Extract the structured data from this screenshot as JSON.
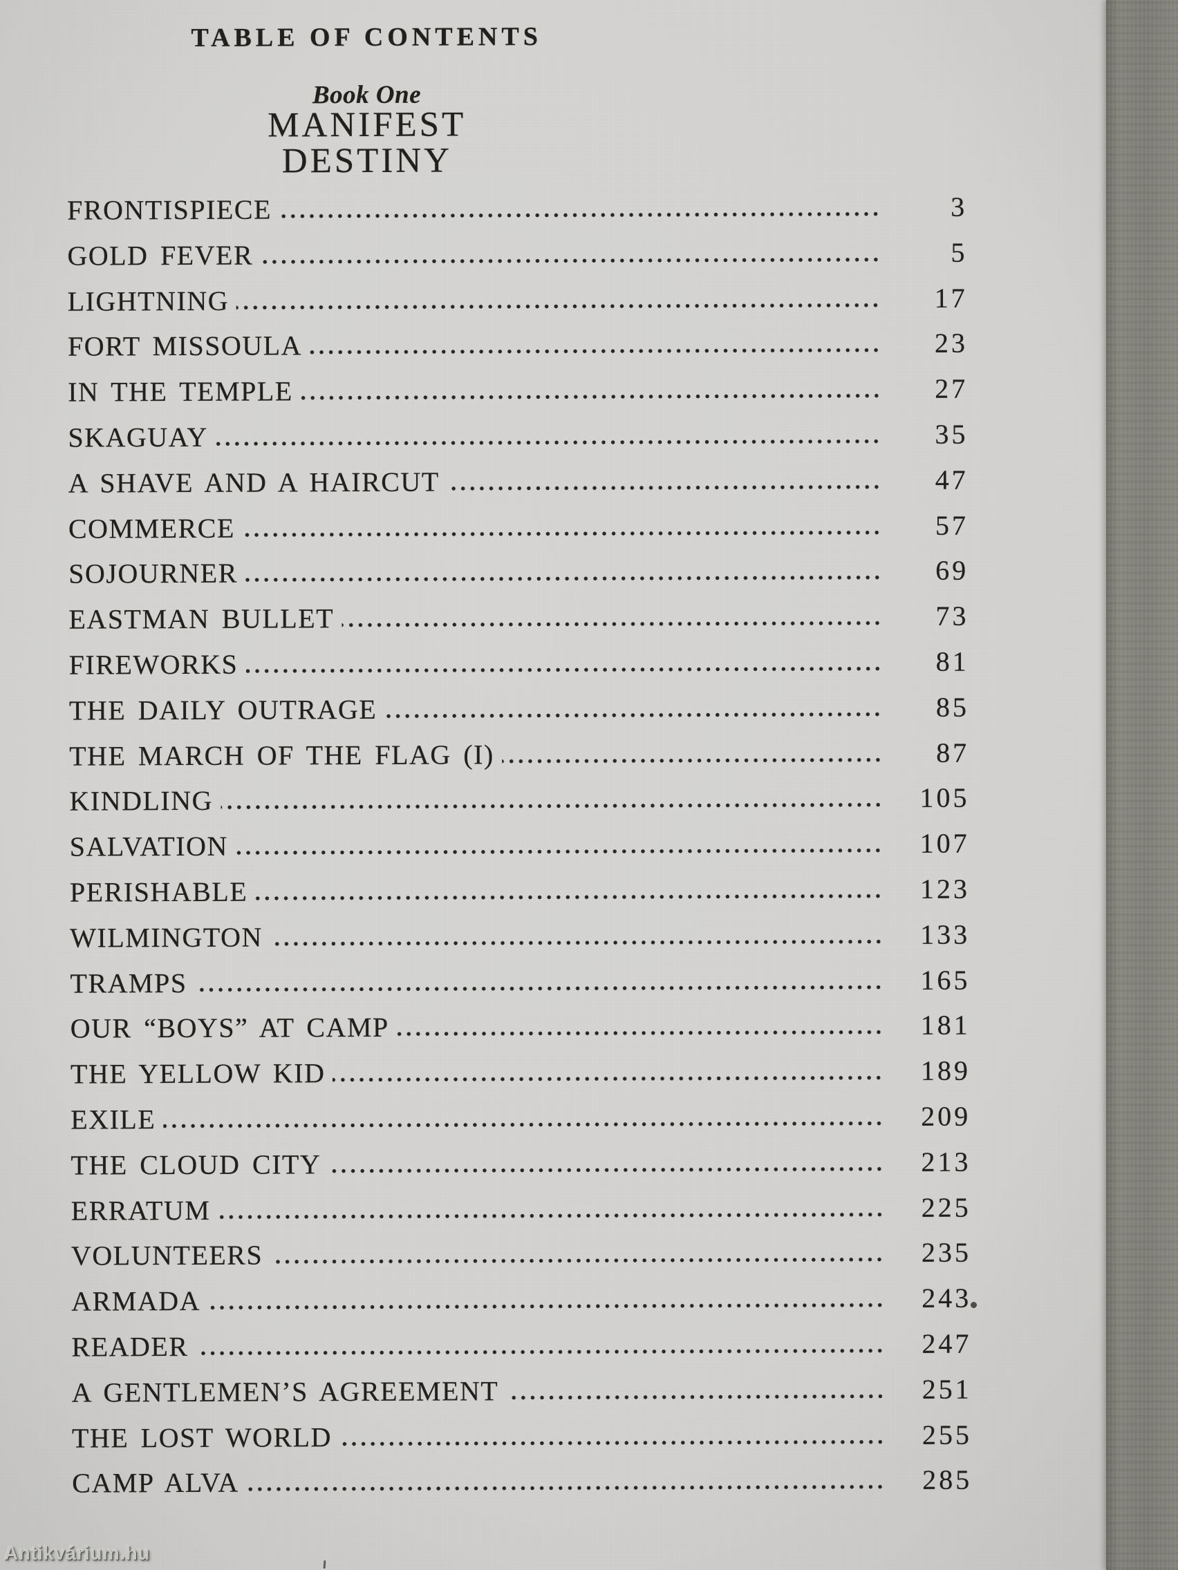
{
  "document": {
    "header": "TABLE OF CONTENTS",
    "section_label": "Book One",
    "section_title_line1": "MANIFEST",
    "section_title_line2": "DESTINY"
  },
  "entries": [
    {
      "title": "FRONTISPIECE",
      "page": "3"
    },
    {
      "title": "GOLD FEVER",
      "page": "5"
    },
    {
      "title": "LIGHTNING",
      "page": "17"
    },
    {
      "title": "FORT MISSOULA",
      "page": "23"
    },
    {
      "title": "IN THE TEMPLE",
      "page": "27"
    },
    {
      "title": "SKAGUAY",
      "page": "35"
    },
    {
      "title": "A SHAVE AND A HAIRCUT",
      "page": "47"
    },
    {
      "title": "COMMERCE",
      "page": "57"
    },
    {
      "title": "SOJOURNER",
      "page": "69"
    },
    {
      "title": "EASTMAN BULLET",
      "page": "73"
    },
    {
      "title": "FIREWORKS",
      "page": "81"
    },
    {
      "title": "THE DAILY OUTRAGE",
      "page": "85"
    },
    {
      "title": "THE MARCH OF THE FLAG (I)",
      "page": "87"
    },
    {
      "title": "KINDLING",
      "page": "105"
    },
    {
      "title": "SALVATION",
      "page": "107"
    },
    {
      "title": "PERISHABLE",
      "page": "123"
    },
    {
      "title": "WILMINGTON",
      "page": "133"
    },
    {
      "title": "TRAMPS",
      "page": "165"
    },
    {
      "title": "OUR “BOYS” AT CAMP",
      "page": "181"
    },
    {
      "title": "THE YELLOW KID",
      "page": "189"
    },
    {
      "title": "EXILE",
      "page": "209"
    },
    {
      "title": "THE CLOUD CITY",
      "page": "213"
    },
    {
      "title": "ERRATUM",
      "page": "225"
    },
    {
      "title": "VOLUNTEERS",
      "page": "235"
    },
    {
      "title": "ARMADA",
      "page": "243"
    },
    {
      "title": "READER",
      "page": "247"
    },
    {
      "title": "A GENTLEMEN’S AGREEMENT",
      "page": "251"
    },
    {
      "title": "THE LOST WORLD",
      "page": "255"
    },
    {
      "title": "CAMP ALVA",
      "page": "285"
    }
  ],
  "watermark": "Antikvárium.hu",
  "colors": {
    "paper": "#d3d2d0",
    "ink": "#201f1c",
    "page_edge": "#8a8a82"
  }
}
